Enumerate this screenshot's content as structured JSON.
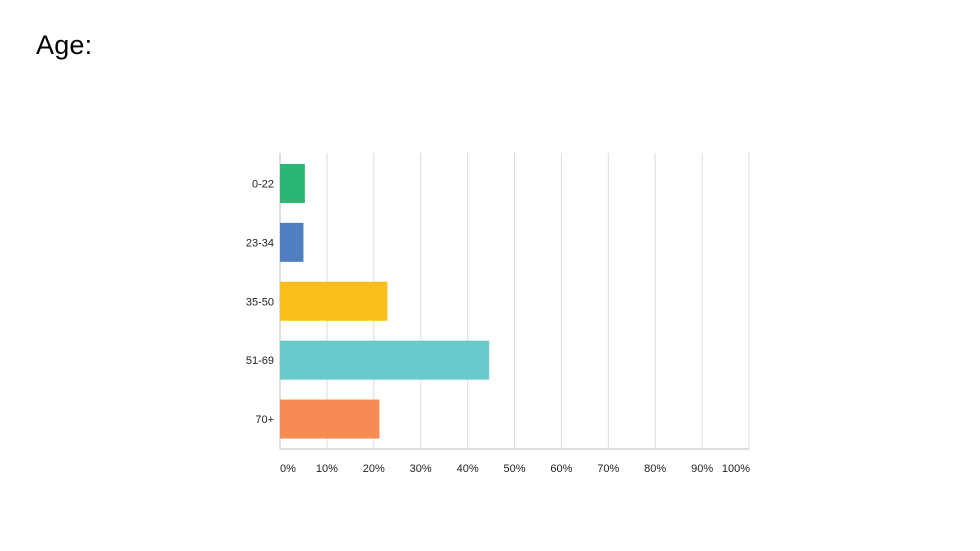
{
  "page": {
    "title": "Age:"
  },
  "chart_data": {
    "type": "bar",
    "orientation": "horizontal",
    "categories": [
      "0-22",
      "23-34",
      "35-50",
      "51-69",
      "70+"
    ],
    "values": [
      5.3,
      5.0,
      22.9,
      44.6,
      21.2
    ],
    "unit": "%",
    "xlim": [
      0,
      100
    ],
    "x_ticks": [
      "0%",
      "10%",
      "20%",
      "30%",
      "40%",
      "50%",
      "60%",
      "70%",
      "80%",
      "90%",
      "100%"
    ],
    "colors": [
      "#2bb673",
      "#4f7fc0",
      "#f9be1b",
      "#68cacd",
      "#f68b53"
    ],
    "grid": true,
    "legend": "none"
  }
}
